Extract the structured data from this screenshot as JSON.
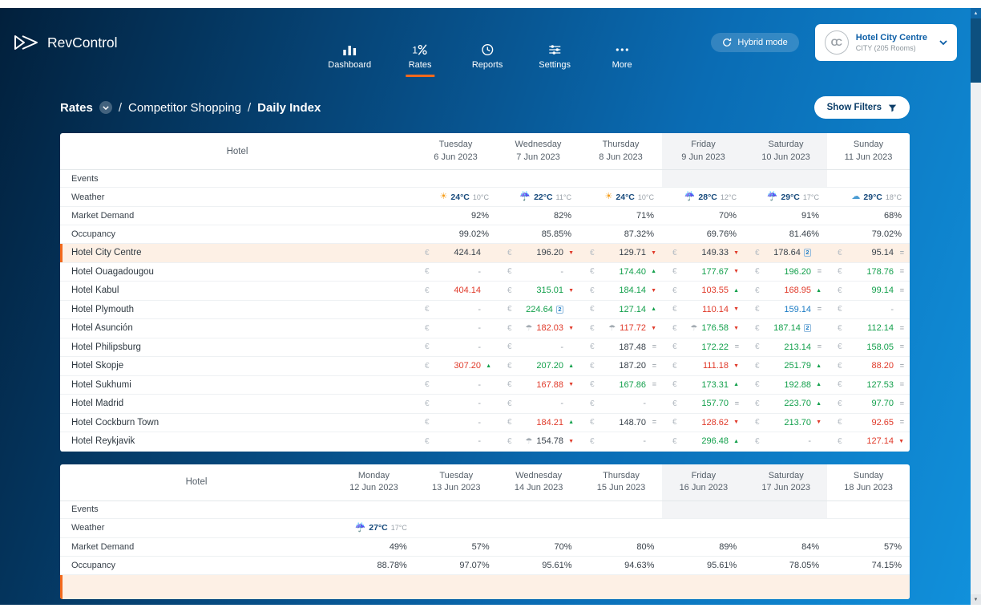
{
  "colors": {
    "accent": "#f2691c",
    "green": "#13a04c",
    "red": "#e03a2a",
    "blue": "#1a7bc4",
    "highlight-bg": "#fdf0e5"
  },
  "header": {
    "brand": "RevControl",
    "nav_items": [
      {
        "label": "Dashboard",
        "icon": "bar-chart-icon",
        "active": false
      },
      {
        "label": "Rates",
        "icon": "percent-icon",
        "active": true
      },
      {
        "label": "Reports",
        "icon": "clock-icon",
        "active": false
      },
      {
        "label": "Settings",
        "icon": "sliders-icon",
        "active": false
      },
      {
        "label": "More",
        "icon": "dots-icon",
        "active": false
      }
    ],
    "hybrid_mode_label": "Hybrid mode",
    "property": {
      "monogram": "CC",
      "name": "Hotel City Centre",
      "details": "CITY (205 Rooms)"
    }
  },
  "breadcrumb": {
    "section": "Rates",
    "separator": "/",
    "parent": "Competitor Shopping",
    "current": "Daily Index"
  },
  "filters_button_label": "Show Filters",
  "tables": [
    {
      "hotel_header": "Hotel",
      "currency": "€",
      "columns": [
        {
          "day": "Tuesday",
          "date": "6 Jun 2023",
          "weekend": false
        },
        {
          "day": "Wednesday",
          "date": "7 Jun 2023",
          "weekend": false
        },
        {
          "day": "Thursday",
          "date": "8 Jun 2023",
          "weekend": false
        },
        {
          "day": "Friday",
          "date": "9 Jun 2023",
          "weekend": true
        },
        {
          "day": "Saturday",
          "date": "10 Jun 2023",
          "weekend": true
        },
        {
          "day": "Sunday",
          "date": "11 Jun 2023",
          "weekend": false
        }
      ],
      "events": {
        "label": "Events"
      },
      "weather": {
        "label": "Weather",
        "cells": [
          {
            "icon": "sun",
            "high": "24°C",
            "low": "10°C"
          },
          {
            "icon": "rain",
            "high": "22°C",
            "low": "11°C"
          },
          {
            "icon": "sun",
            "high": "24°C",
            "low": "10°C"
          },
          {
            "icon": "rain",
            "high": "28°C",
            "low": "12°C"
          },
          {
            "icon": "rain",
            "high": "29°C",
            "low": "17°C"
          },
          {
            "icon": "cloud",
            "high": "29°C",
            "low": "18°C"
          }
        ]
      },
      "market_demand": {
        "label": "Market Demand",
        "values": [
          "92%",
          "82%",
          "71%",
          "70%",
          "91%",
          "68%"
        ]
      },
      "occupancy": {
        "label": "Occupancy",
        "values": [
          "99.02%",
          "85.85%",
          "87.32%",
          "69.76%",
          "81.46%",
          "79.02%"
        ]
      },
      "hotels": [
        {
          "name": "Hotel City Centre",
          "highlight": true,
          "cells": [
            {
              "v": "424.14"
            },
            {
              "v": "196.20",
              "t": "down"
            },
            {
              "v": "129.71",
              "t": "down"
            },
            {
              "v": "149.33",
              "t": "down"
            },
            {
              "v": "178.64",
              "b": "2"
            },
            {
              "v": "95.14",
              "t": "eq"
            }
          ]
        },
        {
          "name": "Hotel Ouagadougou",
          "highlight": false,
          "cells": [
            {
              "v": "-"
            },
            {
              "v": "-"
            },
            {
              "v": "174.40",
              "c": "green",
              "t": "up"
            },
            {
              "v": "177.67",
              "c": "green",
              "t": "down"
            },
            {
              "v": "196.20",
              "c": "green",
              "t": "eq"
            },
            {
              "v": "178.76",
              "c": "green",
              "t": "eq"
            }
          ]
        },
        {
          "name": "Hotel Kabul",
          "highlight": false,
          "cells": [
            {
              "v": "404.14",
              "c": "red"
            },
            {
              "v": "315.01",
              "c": "green",
              "t": "down"
            },
            {
              "v": "184.14",
              "c": "green",
              "t": "down"
            },
            {
              "v": "103.55",
              "c": "red",
              "t": "up"
            },
            {
              "v": "168.95",
              "c": "red",
              "t": "up"
            },
            {
              "v": "99.14",
              "c": "green",
              "t": "eq"
            }
          ]
        },
        {
          "name": "Hotel Plymouth",
          "highlight": false,
          "cells": [
            {
              "v": "-"
            },
            {
              "v": "224.64",
              "c": "green",
              "b": "2"
            },
            {
              "v": "127.14",
              "c": "green",
              "t": "up"
            },
            {
              "v": "110.14",
              "c": "red",
              "t": "down"
            },
            {
              "v": "159.14",
              "c": "blue",
              "t": "eq"
            },
            {
              "v": "-"
            }
          ]
        },
        {
          "name": "Hotel Asunción",
          "highlight": false,
          "cells": [
            {
              "v": "-"
            },
            {
              "v": "182.03",
              "c": "red",
              "t": "down",
              "i": "umbrella"
            },
            {
              "v": "117.72",
              "c": "red",
              "t": "down",
              "i": "umbrella"
            },
            {
              "v": "176.58",
              "c": "green",
              "t": "down",
              "i": "umbrella"
            },
            {
              "v": "187.14",
              "c": "green",
              "b": "2"
            },
            {
              "v": "112.14",
              "c": "green",
              "t": "eq"
            }
          ]
        },
        {
          "name": "Hotel Philipsburg",
          "highlight": false,
          "cells": [
            {
              "v": "-"
            },
            {
              "v": "-"
            },
            {
              "v": "187.48",
              "t": "eq"
            },
            {
              "v": "172.22",
              "c": "green",
              "t": "eq"
            },
            {
              "v": "213.14",
              "c": "green",
              "t": "eq"
            },
            {
              "v": "158.05",
              "c": "green",
              "t": "eq"
            }
          ]
        },
        {
          "name": "Hotel Skopje",
          "highlight": false,
          "cells": [
            {
              "v": "307.20",
              "c": "red",
              "t": "up"
            },
            {
              "v": "207.20",
              "c": "green",
              "t": "up"
            },
            {
              "v": "187.20",
              "t": "eq"
            },
            {
              "v": "111.18",
              "c": "red",
              "t": "down"
            },
            {
              "v": "251.79",
              "c": "green",
              "t": "up"
            },
            {
              "v": "88.20",
              "c": "red",
              "t": "eq"
            }
          ]
        },
        {
          "name": "Hotel Sukhumi",
          "highlight": false,
          "cells": [
            {
              "v": "-"
            },
            {
              "v": "167.88",
              "c": "red",
              "t": "down"
            },
            {
              "v": "167.86",
              "c": "green",
              "t": "eq"
            },
            {
              "v": "173.31",
              "c": "green",
              "t": "up"
            },
            {
              "v": "192.88",
              "c": "green",
              "t": "up"
            },
            {
              "v": "127.53",
              "c": "green",
              "t": "eq"
            }
          ]
        },
        {
          "name": "Hotel Madrid",
          "highlight": false,
          "cells": [
            {
              "v": "-"
            },
            {
              "v": "-"
            },
            {
              "v": "-"
            },
            {
              "v": "157.70",
              "c": "green",
              "t": "eq"
            },
            {
              "v": "223.70",
              "c": "green",
              "t": "up"
            },
            {
              "v": "97.70",
              "c": "green",
              "t": "eq"
            }
          ]
        },
        {
          "name": "Hotel Cockburn Town",
          "highlight": false,
          "cells": [
            {
              "v": "-"
            },
            {
              "v": "184.21",
              "c": "red",
              "t": "up"
            },
            {
              "v": "148.70",
              "t": "eq"
            },
            {
              "v": "128.62",
              "c": "red",
              "t": "down"
            },
            {
              "v": "213.70",
              "c": "green",
              "t": "down"
            },
            {
              "v": "92.65",
              "c": "red",
              "t": "eq"
            }
          ]
        },
        {
          "name": "Hotel Reykjavik",
          "highlight": false,
          "cells": [
            {
              "v": "-"
            },
            {
              "v": "154.78",
              "t": "down",
              "i": "umbrella"
            },
            {
              "v": "-"
            },
            {
              "v": "296.48",
              "c": "green",
              "t": "up"
            },
            {
              "v": "-"
            },
            {
              "v": "127.14",
              "c": "red",
              "t": "down"
            }
          ]
        }
      ],
      "partial_row": false
    },
    {
      "hotel_header": "Hotel",
      "currency": "€",
      "columns": [
        {
          "day": "Monday",
          "date": "12 Jun 2023",
          "weekend": false
        },
        {
          "day": "Tuesday",
          "date": "13 Jun 2023",
          "weekend": false
        },
        {
          "day": "Wednesday",
          "date": "14 Jun 2023",
          "weekend": false
        },
        {
          "day": "Thursday",
          "date": "15 Jun 2023",
          "weekend": false
        },
        {
          "day": "Friday",
          "date": "16 Jun 2023",
          "weekend": true
        },
        {
          "day": "Saturday",
          "date": "17 Jun 2023",
          "weekend": true
        },
        {
          "day": "Sunday",
          "date": "18 Jun 2023",
          "weekend": false
        }
      ],
      "events": {
        "label": "Events"
      },
      "weather": {
        "label": "Weather",
        "cells": [
          {
            "icon": "rain",
            "high": "27°C",
            "low": "17°C"
          },
          null,
          null,
          null,
          null,
          null,
          null
        ]
      },
      "market_demand": {
        "label": "Market Demand",
        "values": [
          "49%",
          "57%",
          "70%",
          "80%",
          "89%",
          "84%",
          "57%"
        ]
      },
      "occupancy": {
        "label": "Occupancy",
        "values": [
          "88.78%",
          "97.07%",
          "95.61%",
          "94.63%",
          "95.61%",
          "78.05%",
          "74.15%"
        ]
      },
      "hotels": [],
      "partial_row": true
    }
  ]
}
